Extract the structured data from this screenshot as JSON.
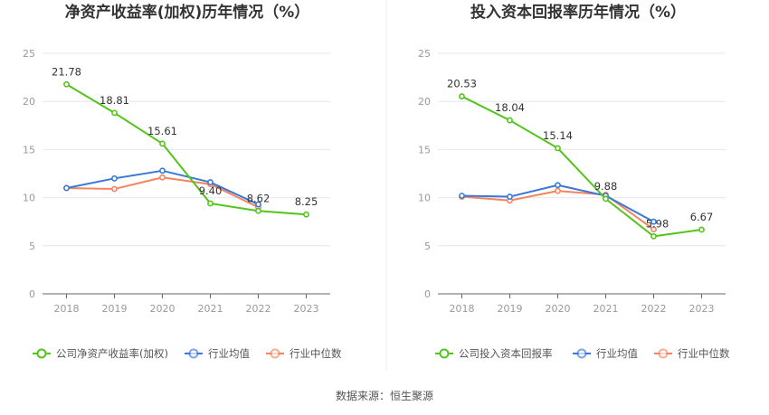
{
  "source": "数据来源：恒生聚源",
  "chart_data": [
    {
      "type": "line",
      "title": "净资产收益率(加权)历年情况（%）",
      "categories": [
        "2018",
        "2019",
        "2020",
        "2021",
        "2022",
        "2023"
      ],
      "ylim": [
        0,
        25
      ],
      "yticks": [
        "0",
        "5",
        "10",
        "15",
        "20",
        "25"
      ],
      "grid": true,
      "legend_position": "bottom",
      "series": [
        {
          "name": "公司净资产收益率(加权)",
          "color": "#52c41a",
          "values": [
            21.78,
            18.81,
            15.61,
            9.4,
            8.62,
            8.25
          ],
          "labels": [
            "21.78",
            "18.81",
            "15.61",
            "9.40",
            "8.62",
            "8.25"
          ]
        },
        {
          "name": "行业均值",
          "color": "#3a78d8",
          "values": [
            11.0,
            12.0,
            12.8,
            11.6,
            9.3,
            null
          ]
        },
        {
          "name": "行业中位数",
          "color": "#f5845e",
          "values": [
            11.0,
            10.9,
            12.1,
            11.4,
            9.0,
            null
          ]
        }
      ]
    },
    {
      "type": "line",
      "title": "投入资本回报率历年情况（%）",
      "categories": [
        "2018",
        "2019",
        "2020",
        "2021",
        "2022",
        "2023"
      ],
      "ylim": [
        0,
        25
      ],
      "yticks": [
        "0",
        "5",
        "10",
        "15",
        "20",
        "25"
      ],
      "grid": true,
      "legend_position": "bottom",
      "series": [
        {
          "name": "公司投入资本回报率",
          "color": "#52c41a",
          "values": [
            20.53,
            18.04,
            15.14,
            9.88,
            5.98,
            6.67
          ],
          "labels": [
            "20.53",
            "18.04",
            "15.14",
            "9.88",
            "5.98",
            "6.67"
          ]
        },
        {
          "name": "行业均值",
          "color": "#3a78d8",
          "values": [
            10.2,
            10.1,
            11.3,
            10.2,
            7.5,
            null
          ]
        },
        {
          "name": "行业中位数",
          "color": "#f5845e",
          "values": [
            10.1,
            9.7,
            10.7,
            10.3,
            6.7,
            null
          ]
        }
      ]
    }
  ]
}
